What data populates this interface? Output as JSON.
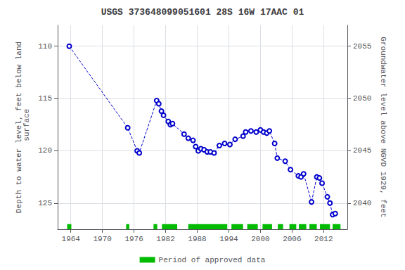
{
  "chart_data": {
    "type": "line",
    "title": "USGS 373648099051601 28S 16W 17AAC 01",
    "ylabel": "Depth to water level, feet below land\n surface",
    "y2label": "Groundwater level above NGVD 1929, feet",
    "xlim": [
      1961.5,
      2016.5
    ],
    "xticks": [
      1964,
      1970,
      1976,
      1982,
      1988,
      1994,
      2000,
      2006,
      2012
    ],
    "ylim": [
      127.5,
      108.0
    ],
    "yticks": [
      110,
      115,
      120,
      125
    ],
    "y2lim": [
      2037.5,
      2057.0
    ],
    "y2ticks": [
      2055,
      2050,
      2045,
      2040
    ],
    "grid": true,
    "legend": "bottom",
    "series": [
      {
        "type": "line",
        "color": "#0000cc",
        "marker": "circle",
        "line_style": "dashed",
        "x": [
          1963.7,
          1974.8,
          1976.6,
          1977.0,
          1980.3,
          1980.7,
          1981.2,
          1981.6,
          1982.5,
          1982.9,
          1983.3,
          1985.5,
          1986.3,
          1987.2,
          1987.7,
          1988.2,
          1988.7,
          1989.3,
          1989.9,
          1990.5,
          1991.2,
          1992.2,
          1993.2,
          1994.2,
          1995.2,
          1996.7,
          1997.2,
          1998.2,
          1999.2,
          2000.0,
          2000.6,
          2001.2,
          2001.7,
          2002.7,
          2003.2,
          2004.7,
          2005.7,
          2007.2,
          2007.7,
          2008.2,
          2009.7,
          2010.7,
          2011.2,
          2011.7,
          2012.7,
          2013.2,
          2013.7,
          2014.2
        ],
        "values": [
          110.0,
          117.8,
          120.0,
          120.2,
          115.2,
          115.5,
          116.2,
          116.6,
          117.2,
          117.5,
          117.4,
          118.4,
          118.8,
          119.0,
          119.6,
          120.0,
          119.8,
          119.9,
          120.1,
          120.1,
          120.2,
          119.5,
          119.3,
          119.4,
          118.9,
          118.6,
          118.2,
          118.1,
          118.2,
          118.0,
          118.2,
          118.3,
          118.1,
          119.3,
          120.7,
          121.0,
          121.8,
          122.4,
          122.5,
          122.2,
          124.9,
          122.5,
          122.6,
          123.1,
          124.4,
          125.0,
          126.1,
          126.0
        ]
      },
      {
        "type": "span",
        "name": "Period of approved data",
        "color": "#00bb00",
        "periods": [
          [
            1963.3,
            1964.1
          ],
          [
            1974.5,
            1975.1
          ],
          [
            1979.7,
            1980.4
          ],
          [
            1981.3,
            1984.2
          ],
          [
            1986.3,
            1993.7
          ],
          [
            1994.5,
            1996.7
          ],
          [
            1997.5,
            1999.5
          ],
          [
            2000.4,
            2002.2
          ],
          [
            2003.3,
            2004.3
          ],
          [
            2005.5,
            2006.8
          ],
          [
            2007.3,
            2008.7
          ],
          [
            2009.3,
            2010.7
          ],
          [
            2011.3,
            2013.2
          ],
          [
            2013.7,
            2015.2
          ]
        ]
      }
    ]
  }
}
